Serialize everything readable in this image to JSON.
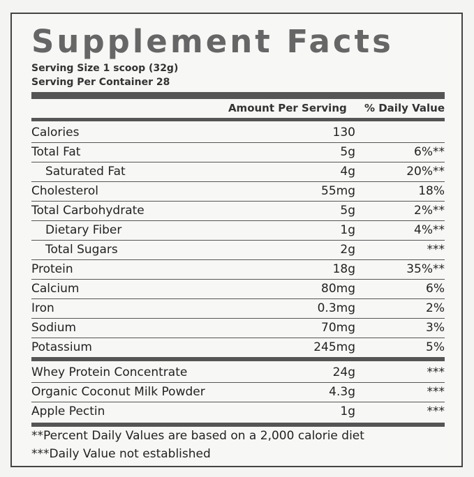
{
  "title": "Supplement Facts",
  "serving_size": "Serving Size 1 scoop (32g)",
  "servings_per_container": "Serving Per Container 28",
  "header": {
    "amount": "Amount Per Serving",
    "daily_value": "% Daily Value"
  },
  "nutrients": [
    {
      "name": "Calories",
      "amount": "130",
      "dv": ""
    },
    {
      "name": "Total Fat",
      "amount": "5g",
      "dv": "6%**"
    },
    {
      "name": "Saturated Fat",
      "amount": "4g",
      "dv": "20%**"
    },
    {
      "name": "Cholesterol",
      "amount": "55mg",
      "dv": "18%"
    },
    {
      "name": "Total Carbohydrate",
      "amount": "5g",
      "dv": "2%**"
    },
    {
      "name": "Dietary Fiber",
      "amount": "1g",
      "dv": "4%**"
    },
    {
      "name": "Total Sugars",
      "amount": "2g",
      "dv": "***"
    },
    {
      "name": "Protein",
      "amount": "18g",
      "dv": "35%**"
    },
    {
      "name": "Calcium",
      "amount": "80mg",
      "dv": "6%"
    },
    {
      "name": "Iron",
      "amount": "0.3mg",
      "dv": "2%"
    },
    {
      "name": "Sodium",
      "amount": "70mg",
      "dv": "3%"
    },
    {
      "name": "Potassium",
      "amount": "245mg",
      "dv": "5%"
    }
  ],
  "ingredients": [
    {
      "name": "Whey Protein Concentrate",
      "amount": "24g",
      "dv": "***"
    },
    {
      "name": "Organic Coconut Milk Powder",
      "amount": "4.3g",
      "dv": "***"
    },
    {
      "name": "Apple Pectin",
      "amount": "1g",
      "dv": "***"
    }
  ],
  "footnotes": [
    "**Percent Daily Values are based on a 2,000 calorie diet",
    "***Daily Value not established"
  ]
}
